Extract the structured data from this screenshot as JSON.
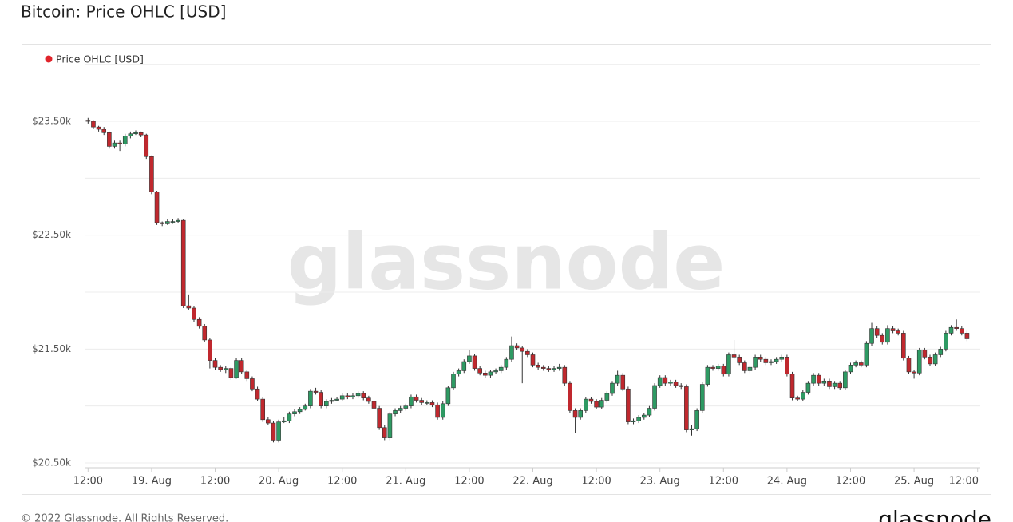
{
  "chart_data": {
    "type": "candlestick",
    "title": "Bitcoin: Price OHLC [USD]",
    "legend": "Price OHLC [USD]",
    "legend_color": "#e0242b",
    "legend_position": "top-left",
    "watermark": "glassnode",
    "footer": "© 2022 Glassnode. All Rights Reserved.",
    "logo": "glassnode",
    "up_color": "#2e9a63",
    "down_color": "#c0282e",
    "xlim": [
      11.5,
      180.5
    ],
    "xticks": [
      {
        "value": 12,
        "label": "12:00"
      },
      {
        "value": 24,
        "label": "19. Aug"
      },
      {
        "value": 36,
        "label": "12:00"
      },
      {
        "value": 48,
        "label": "20. Aug"
      },
      {
        "value": 60,
        "label": "12:00"
      },
      {
        "value": 72,
        "label": "21. Aug"
      },
      {
        "value": 84,
        "label": "12:00"
      },
      {
        "value": 96,
        "label": "22. Aug"
      },
      {
        "value": 108,
        "label": "12:00"
      },
      {
        "value": 120,
        "label": "23. Aug"
      },
      {
        "value": 132,
        "label": "12:00"
      },
      {
        "value": 144,
        "label": "24. Aug"
      },
      {
        "value": 156,
        "label": "12:00"
      },
      {
        "value": 168,
        "label": "25. Aug"
      },
      {
        "value": 180,
        "label": "12:00"
      }
    ],
    "ylim": [
      20500,
      24000
    ],
    "yticks": [
      {
        "value": 20500,
        "label": "$20.50k"
      },
      {
        "value": 21500,
        "label": "$21.50k"
      },
      {
        "value": 22500,
        "label": "$22.50k"
      },
      {
        "value": 23500,
        "label": "$23.50k"
      }
    ],
    "grid": true,
    "grid_values": [
      21000,
      22000,
      23000,
      24000
    ],
    "x": [
      12,
      13,
      14,
      15,
      16,
      17,
      18,
      19,
      20,
      21,
      22,
      23,
      24,
      25,
      26,
      27,
      28,
      29,
      30,
      31,
      32,
      33,
      34,
      35,
      36,
      37,
      38,
      39,
      40,
      41,
      42,
      43,
      44,
      45,
      46,
      47,
      48,
      49,
      50,
      51,
      52,
      53,
      54,
      55,
      56,
      57,
      58,
      59,
      60,
      61,
      62,
      63,
      64,
      65,
      66,
      67,
      68,
      69,
      70,
      71,
      72,
      73,
      74,
      75,
      76,
      77,
      78,
      79,
      80,
      81,
      82,
      83,
      84,
      85,
      86,
      87,
      88,
      89,
      90,
      91,
      92,
      93,
      94,
      95,
      96,
      97,
      98,
      99,
      100,
      101,
      102,
      103,
      104,
      105,
      106,
      107,
      108,
      109,
      110,
      111,
      112,
      113,
      114,
      115,
      116,
      117,
      118,
      119,
      120,
      121,
      122,
      123,
      124,
      125,
      126,
      127,
      128,
      129,
      130,
      131,
      132,
      133,
      134,
      135,
      136,
      137,
      138,
      139,
      140,
      141,
      142,
      143,
      144,
      145,
      146,
      147,
      148,
      149,
      150,
      151,
      152,
      153,
      154,
      155,
      156,
      157,
      158,
      159,
      160,
      161,
      162,
      163,
      164,
      165,
      166,
      167,
      168,
      169,
      170,
      171,
      172,
      173,
      174,
      175,
      176,
      177,
      178
    ],
    "ohlc": [
      [
        23510,
        23530,
        23480,
        23500
      ],
      [
        23500,
        23510,
        23430,
        23450
      ],
      [
        23450,
        23460,
        23410,
        23430
      ],
      [
        23430,
        23450,
        23380,
        23400
      ],
      [
        23400,
        23410,
        23260,
        23280
      ],
      [
        23280,
        23330,
        23260,
        23310
      ],
      [
        23310,
        23330,
        23240,
        23300
      ],
      [
        23300,
        23390,
        23280,
        23370
      ],
      [
        23370,
        23410,
        23350,
        23390
      ],
      [
        23390,
        23420,
        23380,
        23400
      ],
      [
        23400,
        23410,
        23360,
        23380
      ],
      [
        23380,
        23390,
        23170,
        23190
      ],
      [
        23190,
        23200,
        22860,
        22880
      ],
      [
        22880,
        22890,
        22590,
        22610
      ],
      [
        22610,
        22620,
        22580,
        22600
      ],
      [
        22600,
        22640,
        22590,
        22620
      ],
      [
        22620,
        22640,
        22600,
        22620
      ],
      [
        22620,
        22650,
        22610,
        22630
      ],
      [
        22630,
        22640,
        21860,
        21880
      ],
      [
        21880,
        21980,
        21840,
        21860
      ],
      [
        21860,
        21880,
        21740,
        21760
      ],
      [
        21760,
        21780,
        21680,
        21700
      ],
      [
        21700,
        21720,
        21560,
        21580
      ],
      [
        21580,
        21600,
        21330,
        21400
      ],
      [
        21400,
        21420,
        21320,
        21340
      ],
      [
        21340,
        21360,
        21300,
        21320
      ],
      [
        21320,
        21350,
        21290,
        21330
      ],
      [
        21330,
        21340,
        21230,
        21250
      ],
      [
        21250,
        21420,
        21240,
        21400
      ],
      [
        21400,
        21420,
        21280,
        21300
      ],
      [
        21300,
        21320,
        21220,
        21240
      ],
      [
        21240,
        21260,
        21130,
        21150
      ],
      [
        21150,
        21170,
        21040,
        21060
      ],
      [
        21060,
        21080,
        20860,
        20880
      ],
      [
        20880,
        20900,
        20830,
        20850
      ],
      [
        20850,
        20870,
        20680,
        20700
      ],
      [
        20700,
        20880,
        20680,
        20860
      ],
      [
        20860,
        20900,
        20850,
        20870
      ],
      [
        20870,
        20950,
        20850,
        20930
      ],
      [
        20930,
        20970,
        20910,
        20950
      ],
      [
        20950,
        20990,
        20930,
        20970
      ],
      [
        20970,
        21020,
        20960,
        21000
      ],
      [
        21000,
        21150,
        20980,
        21130
      ],
      [
        21130,
        21160,
        21100,
        21120
      ],
      [
        21120,
        21140,
        20980,
        21000
      ],
      [
        21000,
        21060,
        20980,
        21040
      ],
      [
        21040,
        21070,
        21020,
        21050
      ],
      [
        21050,
        21080,
        21040,
        21060
      ],
      [
        21060,
        21110,
        21040,
        21090
      ],
      [
        21090,
        21110,
        21060,
        21080
      ],
      [
        21080,
        21110,
        21060,
        21090
      ],
      [
        21090,
        21130,
        21070,
        21110
      ],
      [
        21110,
        21130,
        21050,
        21070
      ],
      [
        21070,
        21090,
        21020,
        21040
      ],
      [
        21040,
        21060,
        20960,
        20980
      ],
      [
        20980,
        21000,
        20790,
        20810
      ],
      [
        20810,
        20830,
        20700,
        20720
      ],
      [
        20720,
        20950,
        20700,
        20930
      ],
      [
        20930,
        20980,
        20910,
        20960
      ],
      [
        20960,
        21000,
        20940,
        20980
      ],
      [
        20980,
        21020,
        20960,
        21000
      ],
      [
        21000,
        21100,
        20980,
        21080
      ],
      [
        21080,
        21100,
        21030,
        21050
      ],
      [
        21050,
        21070,
        21010,
        21030
      ],
      [
        21030,
        21050,
        21010,
        21030
      ],
      [
        21030,
        21050,
        20990,
        21010
      ],
      [
        21010,
        21030,
        20880,
        20900
      ],
      [
        20900,
        21040,
        20880,
        21020
      ],
      [
        21020,
        21180,
        21000,
        21160
      ],
      [
        21160,
        21300,
        21140,
        21280
      ],
      [
        21280,
        21330,
        21260,
        21310
      ],
      [
        21310,
        21410,
        21290,
        21390
      ],
      [
        21390,
        21490,
        21370,
        21440
      ],
      [
        21440,
        21460,
        21310,
        21330
      ],
      [
        21330,
        21350,
        21270,
        21290
      ],
      [
        21290,
        21310,
        21250,
        21270
      ],
      [
        21270,
        21320,
        21250,
        21300
      ],
      [
        21300,
        21330,
        21280,
        21310
      ],
      [
        21310,
        21360,
        21290,
        21340
      ],
      [
        21340,
        21430,
        21320,
        21410
      ],
      [
        21410,
        21610,
        21390,
        21530
      ],
      [
        21530,
        21550,
        21490,
        21510
      ],
      [
        21510,
        21530,
        21200,
        21480
      ],
      [
        21480,
        21500,
        21430,
        21450
      ],
      [
        21450,
        21470,
        21340,
        21360
      ],
      [
        21360,
        21380,
        21320,
        21340
      ],
      [
        21340,
        21360,
        21310,
        21330
      ],
      [
        21330,
        21350,
        21300,
        21320
      ],
      [
        21320,
        21350,
        21300,
        21330
      ],
      [
        21330,
        21370,
        21310,
        21340
      ],
      [
        21340,
        21360,
        21180,
        21200
      ],
      [
        21200,
        21220,
        20940,
        20960
      ],
      [
        20960,
        20980,
        20760,
        20900
      ],
      [
        20900,
        20980,
        20880,
        20960
      ],
      [
        20960,
        21080,
        20940,
        21060
      ],
      [
        21060,
        21080,
        21020,
        21040
      ],
      [
        21040,
        21060,
        20970,
        20990
      ],
      [
        20990,
        21070,
        20970,
        21050
      ],
      [
        21050,
        21130,
        21030,
        21110
      ],
      [
        21110,
        21220,
        21090,
        21200
      ],
      [
        21200,
        21310,
        21180,
        21270
      ],
      [
        21270,
        21290,
        21130,
        21150
      ],
      [
        21150,
        21170,
        20840,
        20860
      ],
      [
        20860,
        20890,
        20840,
        20870
      ],
      [
        20870,
        20920,
        20850,
        20900
      ],
      [
        20900,
        20940,
        20880,
        20920
      ],
      [
        20920,
        21000,
        20900,
        20980
      ],
      [
        20980,
        21200,
        20960,
        21180
      ],
      [
        21180,
        21270,
        21160,
        21250
      ],
      [
        21250,
        21270,
        21180,
        21200
      ],
      [
        21200,
        21230,
        21180,
        21210
      ],
      [
        21210,
        21230,
        21160,
        21180
      ],
      [
        21180,
        21200,
        21150,
        21170
      ],
      [
        21170,
        21190,
        20770,
        20790
      ],
      [
        20790,
        20830,
        20740,
        20800
      ],
      [
        20800,
        20980,
        20780,
        20960
      ],
      [
        20960,
        21210,
        20940,
        21190
      ],
      [
        21190,
        21360,
        21170,
        21340
      ],
      [
        21340,
        21360,
        21310,
        21330
      ],
      [
        21330,
        21370,
        21310,
        21350
      ],
      [
        21350,
        21370,
        21260,
        21280
      ],
      [
        21280,
        21470,
        21260,
        21450
      ],
      [
        21450,
        21580,
        21410,
        21430
      ],
      [
        21430,
        21450,
        21360,
        21380
      ],
      [
        21380,
        21400,
        21290,
        21310
      ],
      [
        21310,
        21360,
        21290,
        21340
      ],
      [
        21340,
        21450,
        21320,
        21430
      ],
      [
        21430,
        21450,
        21390,
        21410
      ],
      [
        21410,
        21430,
        21360,
        21380
      ],
      [
        21380,
        21410,
        21360,
        21390
      ],
      [
        21390,
        21430,
        21370,
        21410
      ],
      [
        21410,
        21450,
        21390,
        21430
      ],
      [
        21430,
        21450,
        21260,
        21280
      ],
      [
        21280,
        21300,
        21050,
        21070
      ],
      [
        21070,
        21090,
        21040,
        21060
      ],
      [
        21060,
        21140,
        21040,
        21120
      ],
      [
        21120,
        21220,
        21100,
        21200
      ],
      [
        21200,
        21290,
        21180,
        21270
      ],
      [
        21270,
        21290,
        21180,
        21200
      ],
      [
        21200,
        21240,
        21180,
        21220
      ],
      [
        21220,
        21240,
        21150,
        21170
      ],
      [
        21170,
        21220,
        21150,
        21200
      ],
      [
        21200,
        21220,
        21140,
        21160
      ],
      [
        21160,
        21320,
        21140,
        21300
      ],
      [
        21300,
        21380,
        21280,
        21360
      ],
      [
        21360,
        21400,
        21340,
        21380
      ],
      [
        21380,
        21400,
        21340,
        21360
      ],
      [
        21360,
        21570,
        21340,
        21550
      ],
      [
        21550,
        21730,
        21530,
        21680
      ],
      [
        21680,
        21700,
        21600,
        21620
      ],
      [
        21620,
        21640,
        21540,
        21560
      ],
      [
        21560,
        21710,
        21540,
        21680
      ],
      [
        21680,
        21700,
        21640,
        21660
      ],
      [
        21660,
        21680,
        21620,
        21640
      ],
      [
        21640,
        21660,
        21400,
        21420
      ],
      [
        21420,
        21440,
        21280,
        21300
      ],
      [
        21300,
        21320,
        21240,
        21290
      ],
      [
        21290,
        21510,
        21270,
        21490
      ],
      [
        21490,
        21510,
        21410,
        21430
      ],
      [
        21430,
        21450,
        21350,
        21370
      ],
      [
        21370,
        21470,
        21350,
        21450
      ],
      [
        21450,
        21520,
        21430,
        21500
      ],
      [
        21500,
        21660,
        21480,
        21640
      ],
      [
        21640,
        21710,
        21620,
        21690
      ],
      [
        21690,
        21760,
        21660,
        21680
      ],
      [
        21680,
        21700,
        21620,
        21640
      ],
      [
        21640,
        21660,
        21570,
        21590
      ]
    ]
  }
}
